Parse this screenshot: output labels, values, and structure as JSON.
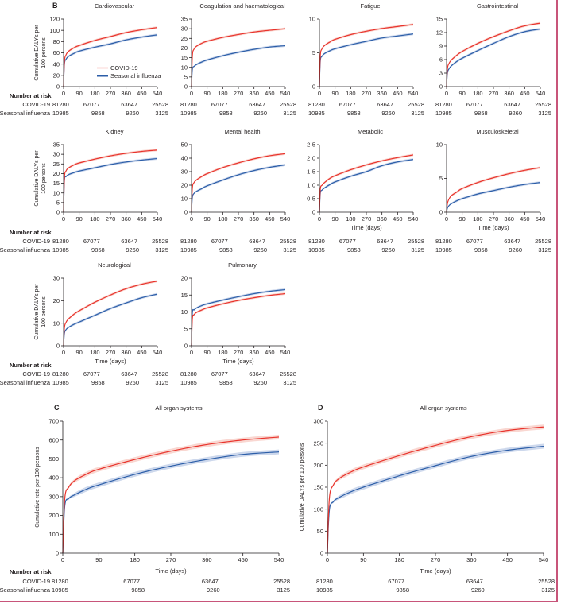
{
  "colors": {
    "covid": "#e8332c",
    "flu": "#2c5ea8",
    "covid_band": "#f7c9c1",
    "flu_band": "#bccbe6",
    "axis": "#231f20",
    "frame": "#c8557a"
  },
  "risk_labels": {
    "header": "Number at risk",
    "covid": "COVID-19",
    "flu": "Seasonal influenza"
  },
  "risk_values": {
    "covid": [
      "81280",
      "67077",
      "63647",
      "25528"
    ],
    "flu": [
      "10985",
      "9858",
      "9260",
      "3125"
    ]
  },
  "chart_data": [
    {
      "type": "line",
      "panel": "B",
      "title": "Cardiovascular",
      "ylabel": "Cumulative DALYs per 100 persons",
      "xlabel": "",
      "xlim": [
        0,
        540
      ],
      "ylim": [
        0,
        120
      ],
      "xticks": [
        0,
        90,
        180,
        270,
        360,
        450,
        540
      ],
      "yticks": [
        0,
        20,
        40,
        60,
        80,
        100,
        120
      ],
      "legend": {
        "position": "bottom-right",
        "entries": [
          "COVID-19",
          "Seasonal influenza"
        ]
      },
      "x": [
        0,
        5,
        15,
        30,
        60,
        90,
        180,
        270,
        360,
        450,
        540
      ],
      "series": [
        {
          "name": "COVID-19",
          "values": [
            0,
            45,
            57,
            63,
            69,
            73,
            82,
            89,
            96,
            101,
            105
          ]
        },
        {
          "name": "Seasonal influenza",
          "values": [
            0,
            40,
            49,
            54,
            59,
            63,
            70,
            76,
            83,
            88,
            92
          ]
        }
      ],
      "show_risk_table": true
    },
    {
      "type": "line",
      "title": "Coagulation and haematological",
      "xlim": [
        0,
        540
      ],
      "ylim": [
        0,
        35
      ],
      "xticks": [
        0,
        90,
        180,
        270,
        360,
        450,
        540
      ],
      "yticks": [
        0,
        5,
        10,
        15,
        20,
        25,
        30,
        35
      ],
      "x": [
        0,
        5,
        15,
        30,
        60,
        90,
        180,
        270,
        360,
        450,
        540
      ],
      "series": [
        {
          "name": "COVID-19",
          "values": [
            0,
            16,
            19.5,
            21,
            22.5,
            23.5,
            25.5,
            27,
            28.3,
            29.2,
            30
          ]
        },
        {
          "name": "Seasonal influenza",
          "values": [
            0,
            9,
            10.5,
            11.5,
            12.8,
            13.8,
            16,
            17.8,
            19.3,
            20.5,
            21.2
          ]
        }
      ],
      "show_risk_table": true
    },
    {
      "type": "line",
      "title": "Fatigue",
      "xlim": [
        0,
        540
      ],
      "ylim": [
        0,
        10
      ],
      "xticks": [
        0,
        90,
        180,
        270,
        360,
        450,
        540
      ],
      "yticks": [
        0,
        5,
        10
      ],
      "x": [
        0,
        5,
        15,
        30,
        60,
        90,
        180,
        270,
        360,
        450,
        540
      ],
      "series": [
        {
          "name": "COVID-19",
          "values": [
            0,
            4.6,
            5.6,
            6.1,
            6.6,
            7.0,
            7.7,
            8.2,
            8.6,
            8.9,
            9.2
          ]
        },
        {
          "name": "Seasonal influenza",
          "values": [
            0,
            3.8,
            4.5,
            4.9,
            5.3,
            5.6,
            6.2,
            6.7,
            7.2,
            7.5,
            7.8
          ]
        }
      ],
      "show_risk_table": true
    },
    {
      "type": "line",
      "title": "Gastrointestinal",
      "xlim": [
        0,
        540
      ],
      "ylim": [
        0,
        15
      ],
      "xticks": [
        0,
        90,
        180,
        270,
        360,
        450,
        540
      ],
      "yticks": [
        0,
        3,
        6,
        9,
        12,
        15
      ],
      "x": [
        0,
        5,
        15,
        30,
        60,
        90,
        180,
        270,
        360,
        450,
        540
      ],
      "series": [
        {
          "name": "COVID-19",
          "values": [
            0,
            4.0,
            5.2,
            6.0,
            7.0,
            7.8,
            9.6,
            11.1,
            12.4,
            13.5,
            14.1
          ]
        },
        {
          "name": "Seasonal influenza",
          "values": [
            0,
            3.0,
            4.0,
            4.7,
            5.6,
            6.3,
            8.0,
            9.6,
            11.1,
            12.2,
            12.8
          ]
        }
      ],
      "show_risk_table": true
    },
    {
      "type": "line",
      "title": "Kidney",
      "ylabel": "Cumulative DALYs per 100 persons",
      "xlim": [
        0,
        540
      ],
      "ylim": [
        0,
        35
      ],
      "xticks": [
        0,
        90,
        180,
        270,
        360,
        450,
        540
      ],
      "yticks": [
        0,
        5,
        10,
        15,
        20,
        25,
        30,
        35
      ],
      "x": [
        0,
        5,
        15,
        30,
        60,
        90,
        180,
        270,
        360,
        450,
        540
      ],
      "series": [
        {
          "name": "COVID-19",
          "values": [
            0,
            18,
            21.5,
            23,
            24.5,
            25.5,
            27.5,
            29.2,
            30.5,
            31.5,
            32.2
          ]
        },
        {
          "name": "Seasonal influenza",
          "values": [
            0,
            16.5,
            18.5,
            19.5,
            20.5,
            21.3,
            23,
            24.7,
            26,
            27,
            27.8
          ]
        }
      ],
      "show_risk_table": true
    },
    {
      "type": "line",
      "title": "Mental health",
      "xlim": [
        0,
        540
      ],
      "ylim": [
        0,
        50
      ],
      "xticks": [
        0,
        90,
        180,
        270,
        360,
        450,
        540
      ],
      "yticks": [
        0,
        10,
        20,
        30,
        40,
        50
      ],
      "x": [
        0,
        5,
        15,
        30,
        60,
        90,
        180,
        270,
        360,
        450,
        540
      ],
      "series": [
        {
          "name": "COVID-19",
          "values": [
            0,
            18,
            22,
            24,
            26.5,
            28.5,
            33,
            36.5,
            39.5,
            41.8,
            43.3
          ]
        },
        {
          "name": "Seasonal influenza",
          "values": [
            0,
            11,
            14,
            15.5,
            17.5,
            19.5,
            23.8,
            27.7,
            30.8,
            33.2,
            35
          ]
        }
      ],
      "show_risk_table": true
    },
    {
      "type": "line",
      "title": "Metabolic",
      "xlabel": "Time (days)",
      "xlim": [
        0,
        540
      ],
      "ylim": [
        0,
        2.5
      ],
      "xticks": [
        0,
        90,
        180,
        270,
        360,
        450,
        540
      ],
      "yticks": [
        0,
        0.5,
        1.0,
        1.5,
        2.0,
        2.5
      ],
      "ytick_labels": [
        "0",
        "0·5",
        "1·0",
        "1·5",
        "2·0",
        "2·5"
      ],
      "x": [
        0,
        5,
        15,
        30,
        60,
        90,
        180,
        270,
        360,
        450,
        540
      ],
      "series": [
        {
          "name": "COVID-19",
          "values": [
            0,
            0.85,
            1.0,
            1.1,
            1.25,
            1.35,
            1.57,
            1.75,
            1.9,
            2.02,
            2.12
          ]
        },
        {
          "name": "Seasonal influenza",
          "values": [
            0,
            0.7,
            0.82,
            0.9,
            1.02,
            1.12,
            1.33,
            1.5,
            1.72,
            1.86,
            1.95
          ]
        }
      ],
      "show_risk_table": true
    },
    {
      "type": "line",
      "title": "Musculoskeletal",
      "xlabel": "Time (days)",
      "xlim": [
        0,
        540
      ],
      "ylim": [
        0,
        10
      ],
      "xticks": [
        0,
        90,
        180,
        270,
        360,
        450,
        540
      ],
      "yticks": [
        0,
        5,
        10
      ],
      "x": [
        0,
        5,
        15,
        30,
        60,
        90,
        180,
        270,
        360,
        450,
        540
      ],
      "series": [
        {
          "name": "COVID-19",
          "values": [
            0,
            1.3,
            2.0,
            2.5,
            3.0,
            3.5,
            4.4,
            5.1,
            5.7,
            6.2,
            6.6
          ]
        },
        {
          "name": "Seasonal influenza",
          "values": [
            0,
            0.6,
            1.0,
            1.3,
            1.7,
            2.0,
            2.7,
            3.2,
            3.7,
            4.1,
            4.4
          ]
        }
      ],
      "show_risk_table": true
    },
    {
      "type": "line",
      "title": "Neurological",
      "xlabel": "Time (days)",
      "ylabel": "Cumulative DALYs per 100 persons",
      "xlim": [
        0,
        540
      ],
      "ylim": [
        0,
        30
      ],
      "xticks": [
        0,
        90,
        180,
        270,
        360,
        450,
        540
      ],
      "yticks": [
        0,
        10,
        20,
        30
      ],
      "x": [
        0,
        5,
        15,
        30,
        60,
        90,
        180,
        270,
        360,
        450,
        540
      ],
      "series": [
        {
          "name": "COVID-19",
          "values": [
            0,
            8,
            10.5,
            12,
            14,
            15.5,
            19.3,
            22.5,
            25.3,
            27.3,
            28.7
          ]
        },
        {
          "name": "Seasonal influenza",
          "values": [
            0,
            5.5,
            7.2,
            8.2,
            9.5,
            10.5,
            13.5,
            16.5,
            19,
            21.3,
            22.9
          ]
        }
      ],
      "show_risk_table": true
    },
    {
      "type": "line",
      "title": "Pulmonary",
      "xlabel": "Time (days)",
      "xlim": [
        0,
        540
      ],
      "ylim": [
        0,
        20
      ],
      "xticks": [
        0,
        90,
        180,
        270,
        360,
        450,
        540
      ],
      "yticks": [
        0,
        5,
        10,
        15,
        20
      ],
      "x": [
        0,
        5,
        15,
        30,
        60,
        90,
        180,
        270,
        360,
        450,
        540
      ],
      "series": [
        {
          "name": "COVID-19",
          "values": [
            0,
            8,
            9.2,
            9.9,
            10.6,
            11.2,
            12.4,
            13.4,
            14.2,
            14.9,
            15.4
          ]
        },
        {
          "name": "Seasonal influenza",
          "values": [
            0,
            9.7,
            10.6,
            11.2,
            11.9,
            12.4,
            13.5,
            14.5,
            15.4,
            16.1,
            16.6
          ]
        }
      ],
      "show_risk_table": true
    },
    {
      "type": "line",
      "panel": "C",
      "title": "All organ systems",
      "xlabel": "Time (days)",
      "ylabel": "Cumulative rate per 100 persons",
      "xlim": [
        0,
        540
      ],
      "ylim": [
        0,
        700
      ],
      "xticks": [
        0,
        90,
        180,
        270,
        360,
        450,
        540
      ],
      "yticks": [
        0,
        100,
        200,
        300,
        400,
        500,
        600,
        700
      ],
      "x": [
        0,
        5,
        15,
        30,
        60,
        90,
        180,
        270,
        360,
        450,
        540
      ],
      "series": [
        {
          "name": "COVID-19",
          "values": [
            0,
            290,
            350,
            385,
            420,
            445,
            497,
            541,
            576,
            600,
            616
          ]
        },
        {
          "name": "Seasonal influenza",
          "values": [
            0,
            250,
            290,
            310,
            340,
            362,
            418,
            462,
            497,
            524,
            537
          ]
        }
      ],
      "show_risk_table": true
    },
    {
      "type": "line",
      "panel": "D",
      "title": "All organ systems",
      "xlabel": "Time (days)",
      "ylabel": "Cumulative DALYs per 100 persons",
      "xlim": [
        0,
        540
      ],
      "ylim": [
        0,
        300
      ],
      "xticks": [
        0,
        90,
        180,
        270,
        360,
        450,
        540
      ],
      "yticks": [
        0,
        50,
        100,
        150,
        200,
        250,
        300
      ],
      "x": [
        0,
        5,
        15,
        30,
        60,
        90,
        180,
        270,
        360,
        450,
        540
      ],
      "series": [
        {
          "name": "COVID-19",
          "values": [
            0,
            125,
            155,
            170,
            185,
            196,
            222,
            245,
            265,
            279,
            287
          ]
        },
        {
          "name": "Seasonal influenza",
          "values": [
            0,
            98,
            117,
            127,
            140,
            150,
            176,
            199,
            220,
            234,
            243
          ]
        }
      ],
      "show_risk_table": true
    }
  ]
}
